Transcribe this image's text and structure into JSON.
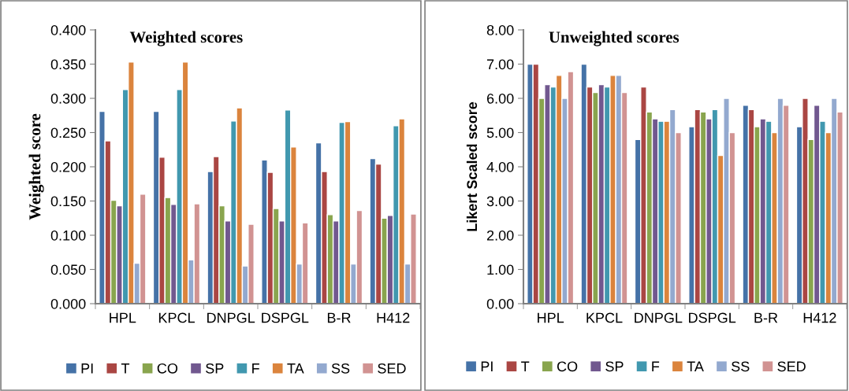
{
  "chart_data": [
    {
      "type": "bar",
      "title": "Weighted scores",
      "ylabel": "Weighted score",
      "categories": [
        "HPL",
        "KPCL",
        "DNPGL",
        "DSPGL",
        "B-R",
        "H412"
      ],
      "series": [
        {
          "name": "PI",
          "color": "#4572a7",
          "values": [
            0.281,
            0.281,
            0.193,
            0.21,
            0.235,
            0.212
          ]
        },
        {
          "name": "T",
          "color": "#aa4643",
          "values": [
            0.238,
            0.214,
            0.215,
            0.192,
            0.193,
            0.204
          ]
        },
        {
          "name": "CO",
          "color": "#89a54e",
          "values": [
            0.151,
            0.155,
            0.143,
            0.139,
            0.13,
            0.125
          ]
        },
        {
          "name": "SP",
          "color": "#71588f",
          "values": [
            0.143,
            0.145,
            0.121,
            0.121,
            0.121,
            0.129
          ]
        },
        {
          "name": "F",
          "color": "#4198af",
          "values": [
            0.313,
            0.313,
            0.267,
            0.283,
            0.265,
            0.26
          ]
        },
        {
          "name": "TA",
          "color": "#db843d",
          "values": [
            0.353,
            0.353,
            0.286,
            0.229,
            0.266,
            0.27
          ]
        },
        {
          "name": "SS",
          "color": "#93a9cf",
          "values": [
            0.059,
            0.064,
            0.055,
            0.058,
            0.058,
            0.058
          ]
        },
        {
          "name": "SED",
          "color": "#d19392",
          "values": [
            0.16,
            0.146,
            0.116,
            0.118,
            0.136,
            0.131
          ]
        }
      ],
      "ylim": [
        0,
        0.4
      ],
      "yticks": [
        {
          "value": 0,
          "label": "0.000"
        },
        {
          "value": 0.05,
          "label": "0.050"
        },
        {
          "value": 0.1,
          "label": "0.100"
        },
        {
          "value": 0.15,
          "label": "0.150"
        },
        {
          "value": 0.2,
          "label": "0.200"
        },
        {
          "value": 0.25,
          "label": "0.250"
        },
        {
          "value": 0.3,
          "label": "0.300"
        },
        {
          "value": 0.35,
          "label": "0.350"
        },
        {
          "value": 0.4,
          "label": "0.400"
        }
      ],
      "grid": false,
      "legend": "bottom"
    },
    {
      "type": "bar",
      "title": "Unweighted scores",
      "ylabel": "Likert Scaled score",
      "categories": [
        "HPL",
        "KPCL",
        "DNPGL",
        "DSPGL",
        "B-R",
        "H412"
      ],
      "series": [
        {
          "name": "PI",
          "color": "#4572a7",
          "values": [
            7.0,
            7.0,
            4.8,
            5.17,
            5.8,
            5.17
          ]
        },
        {
          "name": "T",
          "color": "#aa4643",
          "values": [
            7.0,
            6.33,
            6.33,
            5.67,
            5.67,
            6.0
          ]
        },
        {
          "name": "CO",
          "color": "#89a54e",
          "values": [
            6.0,
            6.17,
            5.6,
            5.6,
            5.17,
            4.8
          ]
        },
        {
          "name": "SP",
          "color": "#71588f",
          "values": [
            6.4,
            6.4,
            5.4,
            5.4,
            5.4,
            5.8
          ]
        },
        {
          "name": "F",
          "color": "#4198af",
          "values": [
            6.33,
            6.33,
            5.33,
            5.67,
            5.33,
            5.33
          ]
        },
        {
          "name": "TA",
          "color": "#db843d",
          "values": [
            6.67,
            6.67,
            5.33,
            4.33,
            5.0,
            5.0
          ]
        },
        {
          "name": "SS",
          "color": "#93a9cf",
          "values": [
            6.0,
            6.67,
            5.67,
            6.0,
            6.0,
            6.0
          ]
        },
        {
          "name": "SED",
          "color": "#d19392",
          "values": [
            6.78,
            6.17,
            5.0,
            5.0,
            5.8,
            5.6
          ]
        }
      ],
      "ylim": [
        0,
        8
      ],
      "yticks": [
        {
          "value": 0,
          "label": "0.00"
        },
        {
          "value": 1,
          "label": "1.00"
        },
        {
          "value": 2,
          "label": "2.00"
        },
        {
          "value": 3,
          "label": "3.00"
        },
        {
          "value": 4,
          "label": "4.00"
        },
        {
          "value": 5,
          "label": "5.00"
        },
        {
          "value": 6,
          "label": "6.00"
        },
        {
          "value": 7,
          "label": "7.00"
        },
        {
          "value": 8,
          "label": "8.00"
        }
      ],
      "grid": false,
      "legend": "bottom"
    }
  ]
}
